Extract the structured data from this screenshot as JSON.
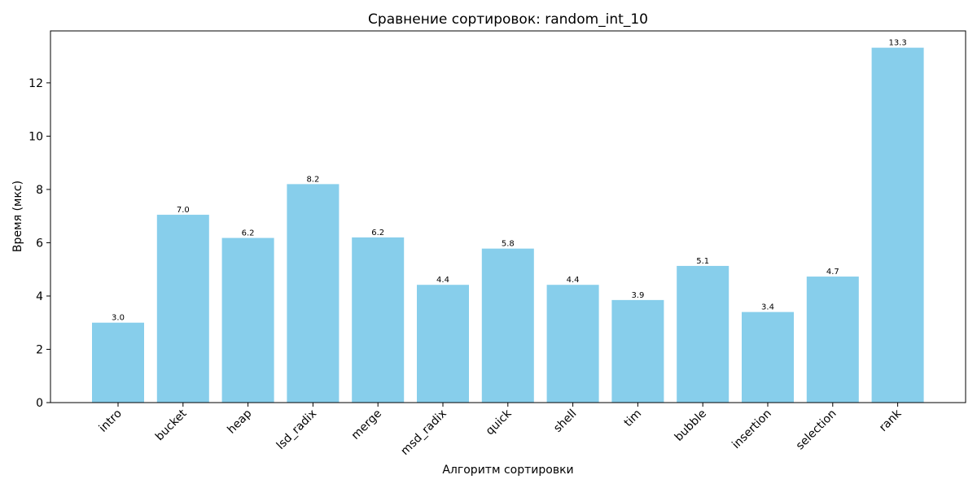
{
  "chart_data": {
    "type": "bar",
    "title": "Сравнение сортировок: random_int_10",
    "xlabel": "Алгоритм сортировки",
    "ylabel": "Время (мкс)",
    "categories": [
      "intro",
      "bucket",
      "heap",
      "lsd_radix",
      "merge",
      "msd_radix",
      "quick",
      "shell",
      "tim",
      "bubble",
      "insertion",
      "selection",
      "rank"
    ],
    "values": [
      3.0,
      7.05,
      6.18,
      8.2,
      6.2,
      4.42,
      5.78,
      4.42,
      3.85,
      5.13,
      3.4,
      4.73,
      13.32
    ],
    "value_labels": [
      "3.0",
      "7.0",
      "6.2",
      "8.2",
      "6.2",
      "4.4",
      "5.8",
      "4.4",
      "3.9",
      "5.1",
      "3.4",
      "4.7",
      "13.3"
    ],
    "ylim": [
      0,
      13.95
    ],
    "yticks": [
      0,
      2,
      4,
      6,
      8,
      10,
      12
    ],
    "bar_color": "#87ceeb",
    "grid": false,
    "legend": "none",
    "xtick_rotation": 45
  }
}
